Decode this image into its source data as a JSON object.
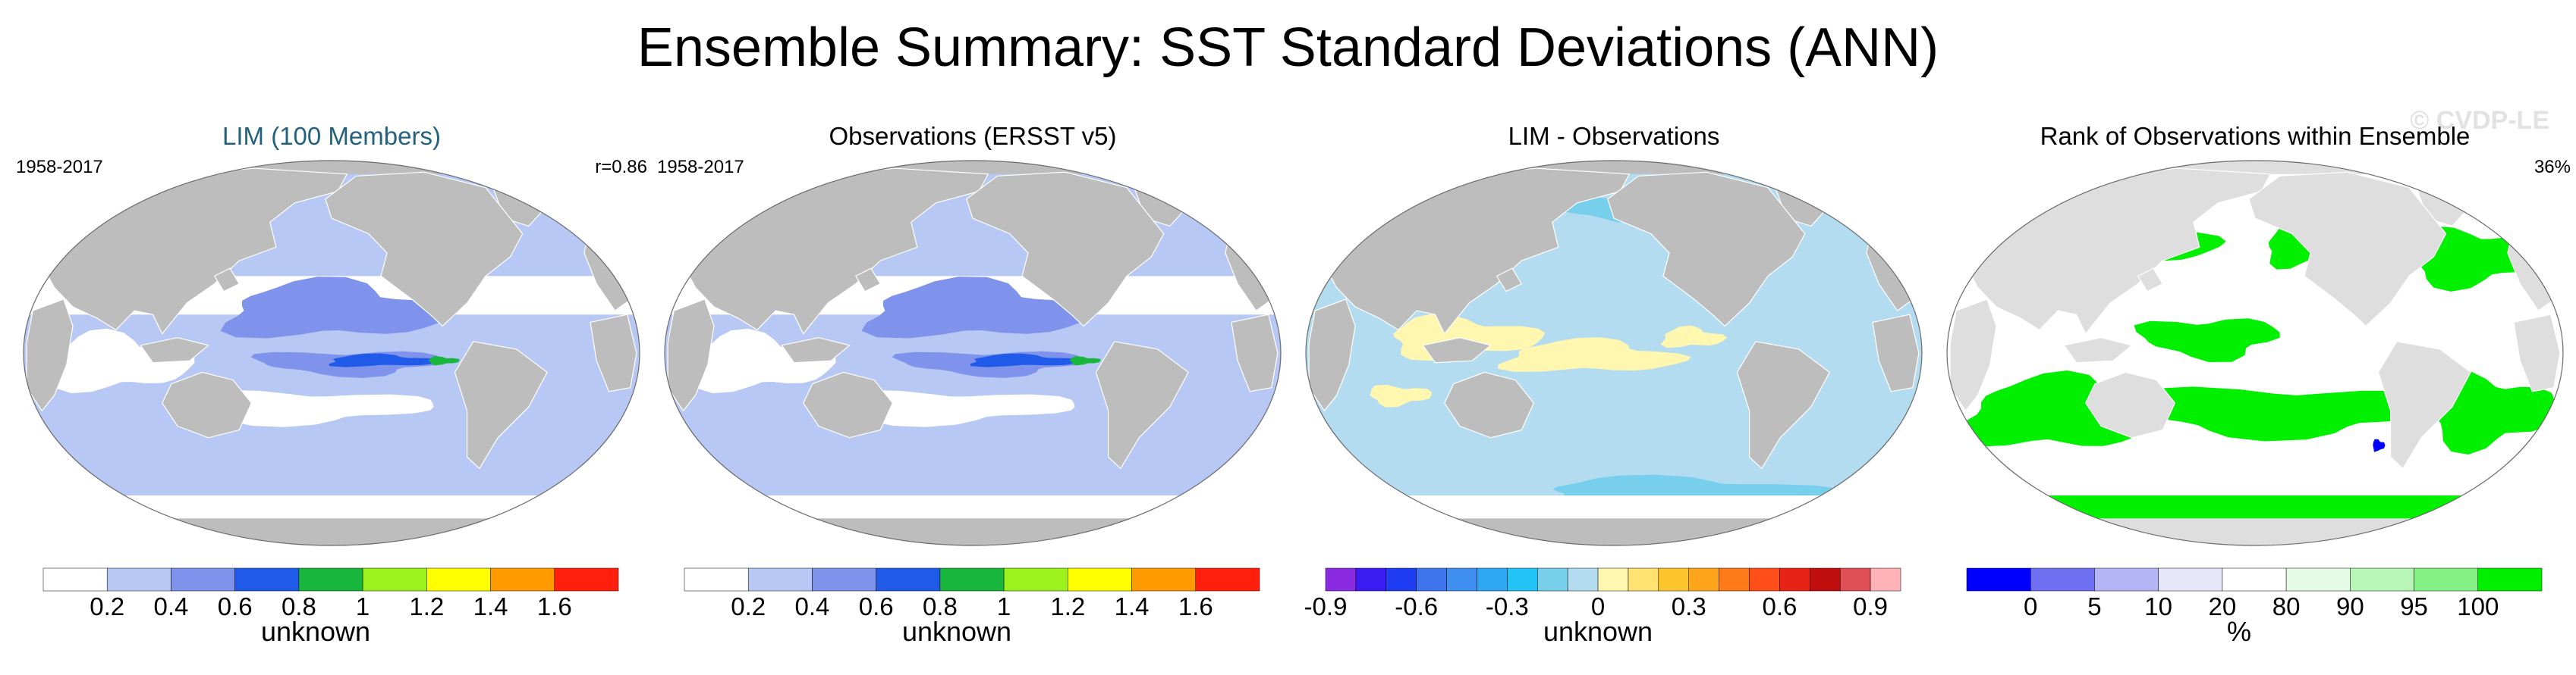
{
  "figure": {
    "title": "Ensemble Summary: SST Standard Deviations (ANN)",
    "watermark": "© CVDP-LE"
  },
  "panels": [
    {
      "title": "LIM (100 Members)",
      "title_color": "#23627f",
      "left_label": "1958-2017",
      "right_label": "r=0.86",
      "map_kind": "std",
      "colorbar": {
        "colors": [
          "#ffffff",
          "#b8c8f5",
          "#8093ec",
          "#1f5be8",
          "#19b63d",
          "#9bf21d",
          "#ffff00",
          "#ff9a00",
          "#ff1f0c"
        ],
        "ticks": [
          "0.2",
          "0.4",
          "0.6",
          "0.8",
          "1",
          "1.2",
          "1.4",
          "1.6"
        ],
        "label": "unknown"
      }
    },
    {
      "title": "Observations (ERSST v5)",
      "title_color": "#000000",
      "left_label": "1958-2017",
      "right_label": "",
      "map_kind": "std",
      "colorbar": {
        "colors": [
          "#ffffff",
          "#b8c8f5",
          "#8093ec",
          "#1f5be8",
          "#19b63d",
          "#9bf21d",
          "#ffff00",
          "#ff9a00",
          "#ff1f0c"
        ],
        "ticks": [
          "0.2",
          "0.4",
          "0.6",
          "0.8",
          "1",
          "1.2",
          "1.4",
          "1.6"
        ],
        "label": "unknown"
      }
    },
    {
      "title": "LIM - Observations",
      "title_color": "#000000",
      "left_label": "",
      "right_label": "",
      "map_kind": "diff",
      "colorbar": {
        "colors": [
          "#8a2be2",
          "#3c1bf2",
          "#1e3df0",
          "#3e74ee",
          "#3f8ff0",
          "#2fa8f4",
          "#22c4f6",
          "#78cfec",
          "#b3dcf1",
          "#fff7b0",
          "#ffe26f",
          "#ffc52c",
          "#ffa51c",
          "#ff7b1a",
          "#ff4e18",
          "#e82316",
          "#c00e0e",
          "#e04f55",
          "#ffb3b6"
        ],
        "ticks": [
          "-0.9",
          "-0.6",
          "-0.3",
          "0",
          "0.3",
          "0.6",
          "0.9"
        ],
        "label": "unknown"
      }
    },
    {
      "title": "Rank of Observations within Ensemble",
      "title_color": "#000000",
      "left_label": "",
      "right_label": "36%",
      "map_kind": "rank",
      "colorbar": {
        "colors": [
          "#0000ff",
          "#6f6ff2",
          "#b5b5f5",
          "#e6e6fb",
          "#ffffff",
          "#e6fbe6",
          "#b8f6b8",
          "#86f286",
          "#00f000"
        ],
        "ticks": [
          "0",
          "5",
          "10",
          "20",
          "80",
          "90",
          "95",
          "100"
        ],
        "label": "%"
      }
    }
  ]
}
